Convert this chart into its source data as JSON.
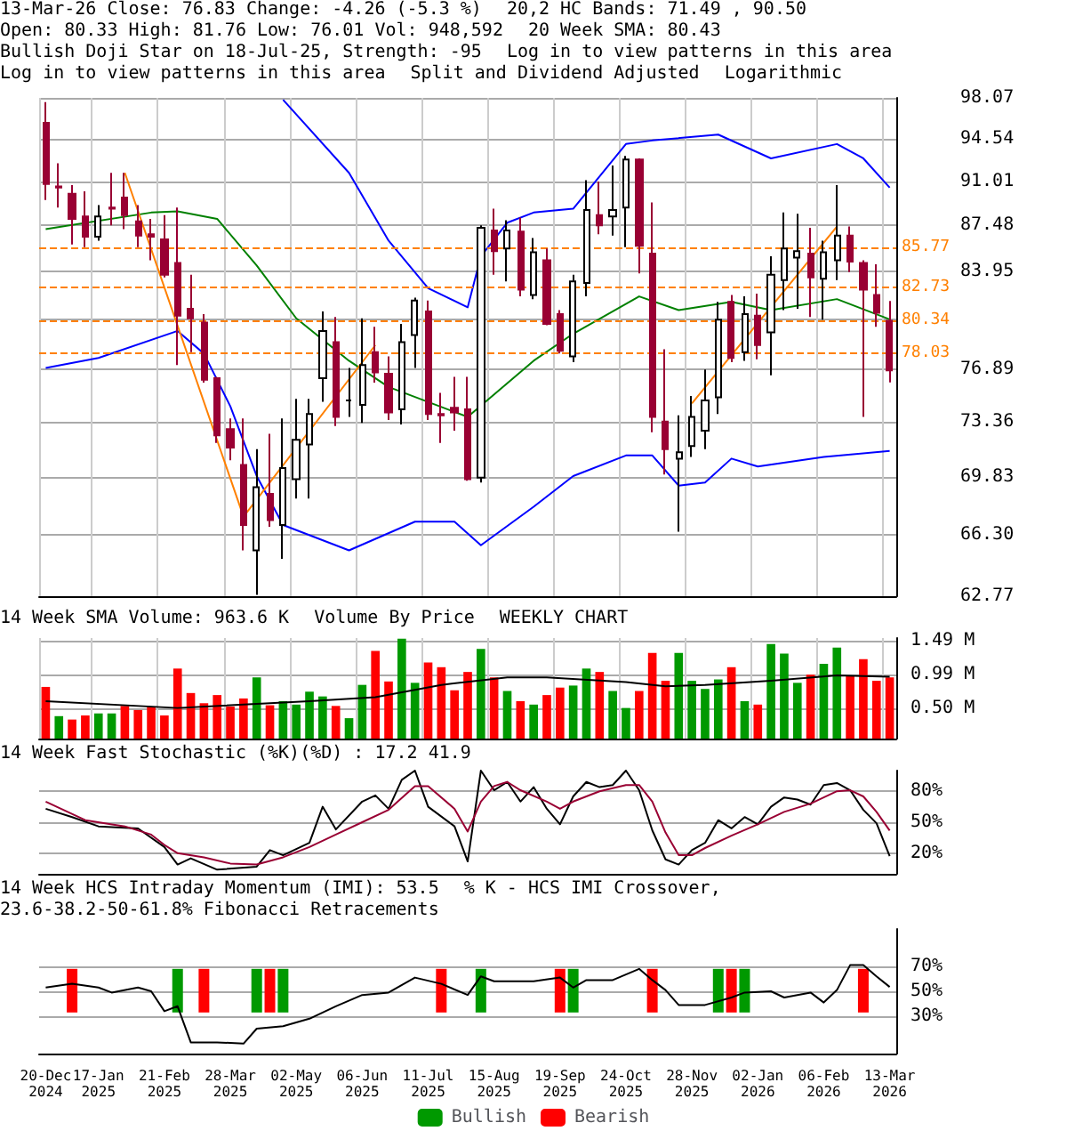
{
  "chart_data": [
    {
      "type": "candlestick",
      "annotations": [
        "13-Mar-26 Close: 76.83 Change: -4.26 (-5.3 %)",
        "20,2 HC Bands: 71.49 , 90.50",
        "Open: 80.33 High: 81.76 Low: 76.01 Vol: 948,592",
        "20 Week SMA: 80.43",
        "Bullish Doji Star on 18-Jul-25, Strength: -95",
        "Log in to view patterns in this area",
        "Log in to view patterns in this area",
        "Split and Dividend Adjusted",
        "Logarithmic"
      ],
      "categories": [
        null,
        null,
        null,
        null,
        null,
        null,
        null,
        null,
        null,
        null,
        null,
        null,
        null,
        null,
        null,
        null,
        null,
        null,
        null,
        null,
        null,
        null,
        null,
        null,
        null,
        null,
        null,
        null,
        null,
        null,
        null,
        null,
        null,
        null,
        null,
        null,
        null,
        null,
        null,
        null,
        null,
        null,
        null,
        null,
        null,
        null,
        null,
        null,
        null,
        null,
        null,
        null,
        null,
        null,
        null,
        null,
        null,
        null,
        null,
        null,
        null,
        null,
        null,
        null,
        null
      ],
      "ohlc": [
        [
          95.9,
          97.7,
          89.5,
          90.8
        ],
        [
          90.6,
          92.5,
          88.9,
          90.5
        ],
        [
          90.0,
          90.7,
          86.0,
          88.0
        ],
        [
          88.2,
          90.2,
          85.8,
          86.6
        ],
        [
          86.6,
          89.1,
          86.3,
          88.2
        ],
        [
          88.9,
          91.7,
          87.5,
          88.8
        ],
        [
          89.7,
          91.7,
          87.2,
          88.3
        ],
        [
          87.8,
          89.1,
          85.8,
          86.7
        ],
        [
          86.8,
          88.0,
          84.8,
          86.6
        ],
        [
          86.4,
          88.3,
          83.5,
          83.7
        ],
        [
          84.6,
          88.9,
          77.2,
          80.7
        ],
        [
          81.2,
          83.7,
          78.1,
          80.5
        ],
        [
          80.2,
          80.8,
          76.0,
          76.2
        ],
        [
          76.3,
          76.4,
          72.0,
          72.5
        ],
        [
          72.9,
          73.6,
          70.9,
          71.7
        ],
        [
          70.6,
          73.6,
          65.4,
          66.9
        ],
        [
          65.4,
          71.6,
          62.85,
          69.2
        ],
        [
          68.8,
          72.6,
          66.8,
          67.2
        ],
        [
          66.9,
          73.6,
          64.9,
          70.4
        ],
        [
          69.7,
          74.9,
          68.5,
          72.2
        ],
        [
          71.9,
          74.9,
          68.5,
          73.9
        ],
        [
          76.3,
          81.0,
          74.7,
          79.6
        ],
        [
          78.8,
          80.6,
          73.1,
          73.7
        ],
        [
          74.8,
          77.0,
          73.7,
          74.8
        ],
        [
          74.5,
          80.5,
          73.3,
          77.2
        ],
        [
          78.1,
          79.9,
          76.0,
          76.7
        ],
        [
          76.6,
          77.8,
          73.5,
          74.0
        ],
        [
          74.2,
          80.1,
          73.2,
          78.8
        ],
        [
          79.3,
          82.0,
          77.0,
          81.8
        ],
        [
          81.0,
          81.8,
          73.5,
          73.9
        ],
        [
          73.9,
          75.3,
          72.0,
          73.8
        ],
        [
          74.3,
          76.4,
          72.8,
          74.0
        ],
        [
          74.2,
          76.4,
          69.6,
          69.7
        ],
        [
          69.8,
          87.5,
          69.5,
          87.3
        ],
        [
          87.1,
          88.8,
          83.7,
          85.5
        ],
        [
          85.7,
          87.9,
          83.2,
          87.1
        ],
        [
          87.0,
          88.1,
          82.1,
          82.6
        ],
        [
          82.2,
          86.5,
          81.9,
          85.4
        ],
        [
          84.8,
          85.7,
          80.0,
          80.1
        ],
        [
          80.8,
          81.1,
          78.0,
          78.2
        ],
        [
          77.8,
          83.7,
          77.4,
          83.2
        ],
        [
          83.1,
          91.1,
          82.1,
          88.7
        ],
        [
          88.3,
          91.0,
          86.8,
          87.5
        ],
        [
          88.2,
          92.3,
          86.7,
          88.7
        ],
        [
          88.9,
          93.1,
          85.8,
          92.8
        ],
        [
          92.8,
          92.9,
          83.8,
          85.9
        ],
        [
          85.3,
          89.3,
          72.7,
          73.7
        ],
        [
          73.4,
          78.3,
          70.0,
          71.6
        ],
        [
          71.0,
          73.8,
          66.5,
          71.4
        ],
        [
          71.8,
          75.1,
          71.1,
          73.7
        ],
        [
          72.8,
          76.9,
          71.6,
          74.8
        ],
        [
          75.0,
          81.7,
          73.9,
          80.4
        ],
        [
          81.7,
          82.2,
          77.4,
          77.7
        ],
        [
          78.1,
          82.1,
          77.5,
          80.8
        ],
        [
          80.7,
          82.3,
          77.6,
          78.6
        ],
        [
          79.5,
          85.1,
          76.5,
          83.7
        ],
        [
          83.3,
          88.5,
          81.1,
          85.7
        ],
        [
          85.0,
          88.4,
          81.2,
          85.5
        ],
        [
          85.3,
          87.3,
          80.6,
          83.5
        ],
        [
          83.4,
          86.3,
          80.4,
          85.4
        ],
        [
          84.8,
          90.7,
          83.3,
          86.7
        ],
        [
          86.7,
          87.4,
          83.9,
          84.7
        ],
        [
          84.6,
          84.8,
          73.7,
          82.6
        ],
        [
          82.2,
          84.5,
          79.9,
          80.9
        ],
        [
          80.33,
          81.76,
          76.01,
          76.83
        ]
      ],
      "series": [
        {
          "type": "line",
          "color": "#0000ff",
          "values": [
            null,
            null,
            null,
            null,
            null,
            null,
            null,
            null,
            null,
            null,
            null,
            null,
            null,
            null,
            null,
            null,
            null,
            null,
            97.9,
            null,
            null,
            null,
            null,
            91.7,
            null,
            null,
            86.3,
            null,
            null,
            82.7,
            null,
            null,
            81.3,
            85.1,
            null,
            87.7,
            null,
            88.5,
            null,
            null,
            88.8,
            null,
            null,
            null,
            94.1,
            null,
            94.4,
            null,
            null,
            null,
            null,
            94.9,
            null,
            null,
            null,
            92.9,
            null,
            null,
            null,
            null,
            94.1,
            null,
            92.9,
            null,
            90.5
          ]
        },
        {
          "type": "line",
          "color": "#0000ff",
          "values": [
            77.0,
            null,
            null,
            null,
            77.7,
            null,
            null,
            null,
            null,
            null,
            79.6,
            null,
            78.0,
            null,
            74.4,
            null,
            69.9,
            null,
            66.9,
            null,
            null,
            null,
            null,
            65.4,
            null,
            null,
            null,
            null,
            67.1,
            null,
            null,
            67.1,
            null,
            65.7,
            null,
            null,
            null,
            68.0,
            null,
            null,
            69.9,
            null,
            null,
            null,
            71.2,
            null,
            71.2,
            null,
            69.3,
            null,
            69.5,
            null,
            71.0,
            null,
            70.5,
            null,
            null,
            null,
            null,
            71.1,
            null,
            null,
            null,
            null,
            71.49
          ]
        },
        {
          "type": "line",
          "color": "#008000",
          "values": [
            87.2,
            null,
            null,
            null,
            null,
            null,
            null,
            null,
            88.5,
            null,
            88.6,
            null,
            null,
            88.0,
            null,
            null,
            84.4,
            null,
            null,
            80.5,
            null,
            null,
            null,
            77.5,
            null,
            null,
            75.7,
            null,
            null,
            null,
            null,
            null,
            73.7,
            null,
            null,
            null,
            null,
            77.5,
            null,
            null,
            79.4,
            null,
            null,
            null,
            null,
            82.1,
            null,
            null,
            81.1,
            null,
            null,
            null,
            81.7,
            null,
            null,
            81.1,
            null,
            null,
            null,
            null,
            81.9,
            null,
            null,
            null,
            80.43
          ]
        },
        {
          "type": "line",
          "color": "#ff8000",
          "values": [
            null,
            null,
            null,
            null,
            null,
            null,
            91.7,
            null,
            null,
            null,
            null,
            null,
            null,
            null,
            null,
            67.4,
            null,
            null,
            null,
            null,
            null,
            null,
            null,
            null,
            null,
            78.6,
            null,
            null,
            null,
            null,
            null,
            null,
            null,
            null,
            null,
            null,
            null,
            null,
            null,
            null,
            null,
            null,
            null,
            null,
            null,
            null,
            null,
            null,
            null,
            null,
            null,
            null,
            null,
            null,
            null,
            null,
            null,
            null,
            null,
            null,
            null,
            null,
            null,
            null,
            null
          ]
        },
        {
          "type": "line",
          "color": "#ff8000",
          "values": [
            null,
            null,
            null,
            null,
            null,
            null,
            null,
            null,
            null,
            null,
            null,
            null,
            null,
            null,
            null,
            null,
            null,
            null,
            null,
            null,
            null,
            null,
            null,
            null,
            null,
            null,
            null,
            null,
            null,
            null,
            null,
            null,
            null,
            null,
            null,
            null,
            null,
            null,
            null,
            null,
            null,
            null,
            null,
            null,
            null,
            null,
            null,
            null,
            null,
            74.6,
            null,
            null,
            null,
            null,
            null,
            null,
            null,
            null,
            null,
            null,
            87.4,
            null,
            null,
            null,
            null
          ]
        }
      ],
      "ylim": [
        62.77,
        98.07
      ],
      "yticks": [
        62.77,
        {
          "value": 66.3,
          "label": "66.30"
        },
        69.83,
        73.36,
        76.89,
        {
          "value": 80.42,
          "label": null
        },
        83.95,
        87.48,
        91.01,
        94.54,
        98.07
      ],
      "log": true,
      "grid": true,
      "tick_labels": "y",
      "ref_lines": [
        {
          "axis": "y",
          "value": 85.77,
          "label": "85.77",
          "color": "#ff8000",
          "line_style": "dashed"
        },
        {
          "axis": "y",
          "value": 82.73,
          "label": "82.73",
          "color": "#ff8000",
          "line_style": "dashed"
        },
        {
          "axis": "y",
          "value": 80.34,
          "label": "80.34",
          "color": "#ff8000",
          "line_style": "dashed"
        },
        {
          "axis": "y",
          "value": 78.03,
          "label": "78.03",
          "color": "#ff8000",
          "line_style": "dashed"
        }
      ]
    },
    {
      "type": "bar",
      "title": "14 Week SMA Volume: 963.6 K",
      "annotations": [
        "Volume By Price",
        "WEEKLY CHART"
      ],
      "categories": [
        null,
        null,
        null,
        null,
        null,
        null,
        null,
        null,
        null,
        null,
        null,
        null,
        null,
        null,
        null,
        null,
        null,
        null,
        null,
        null,
        null,
        null,
        null,
        null,
        null,
        null,
        null,
        null,
        null,
        null,
        null,
        null,
        null,
        null,
        null,
        null,
        null,
        null,
        null,
        null,
        null,
        null,
        null,
        null,
        null,
        null,
        null,
        null,
        null,
        null,
        null,
        null,
        null,
        null,
        null,
        null,
        null,
        null,
        null,
        null,
        null,
        null,
        null,
        null,
        null
      ],
      "series": [
        {
          "values": [
            0.81,
            0.38,
            0.33,
            0.39,
            0.42,
            0.42,
            0.53,
            0.47,
            0.52,
            0.39,
            1.08,
            0.72,
            0.57,
            0.69,
            0.52,
            0.64,
            0.95,
            0.54,
            0.6,
            0.55,
            0.74,
            0.67,
            0.53,
            0.35,
            0.84,
            1.34,
            0.89,
            1.52,
            0.87,
            1.17,
            1.1,
            0.76,
            1.03,
            1.37,
            0.95,
            0.75,
            0.6,
            0.55,
            0.69,
            0.8,
            0.83,
            1.08,
            1.03,
            0.75,
            0.5,
            0.75,
            1.31,
            0.9,
            1.31,
            0.9,
            0.78,
            0.92,
            1.1,
            0.6,
            0.55,
            1.44,
            1.3,
            0.87,
            0.99,
            1.15,
            1.39,
            0.97,
            1.22,
            0.9,
            0.95
          ],
          "colors": [
            "#ff0000",
            "#009900",
            "#ff0000",
            "#ff0000",
            "#009900",
            "#009900",
            "#ff0000",
            "#ff0000",
            "#ff0000",
            "#ff0000",
            "#ff0000",
            "#ff0000",
            "#ff0000",
            "#ff0000",
            "#ff0000",
            "#ff0000",
            "#009900",
            "#ff0000",
            "#009900",
            "#009900",
            "#009900",
            "#009900",
            "#ff0000",
            "#009900",
            "#009900",
            "#ff0000",
            "#ff0000",
            "#009900",
            "#009900",
            "#ff0000",
            "#ff0000",
            "#ff0000",
            "#ff0000",
            "#009900",
            "#ff0000",
            "#009900",
            "#ff0000",
            "#009900",
            "#ff0000",
            "#ff0000",
            "#009900",
            "#009900",
            "#ff0000",
            "#009900",
            "#009900",
            "#ff0000",
            "#ff0000",
            "#ff0000",
            "#009900",
            "#009900",
            "#009900",
            "#009900",
            "#ff0000",
            "#009900",
            "#ff0000",
            "#009900",
            "#009900",
            "#009900",
            "#ff0000",
            "#009900",
            "#009900",
            "#ff0000",
            "#ff0000",
            "#ff0000",
            "#ff0000"
          ]
        },
        {
          "type": "line",
          "color": "#000000",
          "values": [
            0.6,
            null,
            null,
            null,
            null,
            null,
            null,
            null,
            null,
            null,
            0.5,
            null,
            null,
            null,
            null,
            null,
            null,
            null,
            null,
            null,
            0.6,
            null,
            null,
            null,
            null,
            0.66,
            null,
            null,
            null,
            null,
            0.84,
            null,
            null,
            null,
            null,
            0.95,
            null,
            null,
            0.95,
            null,
            null,
            null,
            null,
            null,
            0.88,
            null,
            null,
            0.82,
            null,
            null,
            0.84,
            null,
            null,
            null,
            null,
            0.9,
            null,
            null,
            null,
            null,
            0.98,
            null,
            null,
            null,
            0.96
          ]
        }
      ],
      "ylim": [
        0.05,
        1.53
      ],
      "yticks": [
        {
          "value": 0.5,
          "label": "0.50 M"
        },
        {
          "value": 0.99,
          "label": "0.99 M"
        },
        {
          "value": 1.49,
          "label": "1.49 M"
        }
      ],
      "grid": true,
      "tick_labels": "y"
    },
    {
      "type": "line",
      "title": "14 Week Fast Stochastic (%K)(%D) : 17.2 41.9",
      "categories": [
        null,
        null,
        null,
        null,
        null,
        null,
        null,
        null,
        null,
        null,
        null,
        null,
        null,
        null,
        null,
        null,
        null,
        null,
        null,
        null,
        null,
        null,
        null,
        null,
        null,
        null,
        null,
        null,
        null,
        null,
        null,
        null,
        null,
        null,
        null,
        null,
        null,
        null,
        null,
        null,
        null,
        null,
        null,
        null,
        null,
        null,
        null,
        null,
        null,
        null,
        null,
        null,
        null,
        null,
        null,
        null,
        null,
        null,
        null,
        null,
        null,
        null,
        null,
        null,
        null
      ],
      "series": [
        {
          "color": "#000000",
          "values": [
            63,
            null,
            55,
            null,
            46,
            null,
            null,
            44,
            null,
            26,
            9,
            15,
            null,
            4,
            null,
            null,
            7,
            23,
            18,
            null,
            30,
            65,
            43,
            null,
            70,
            76,
            63,
            91,
            100,
            65,
            null,
            46,
            12,
            100,
            81,
            89,
            70,
            84,
            63,
            48,
            75,
            89,
            84,
            86,
            100,
            81,
            42,
            14,
            9,
            23,
            30,
            52,
            44,
            55,
            48,
            65,
            74,
            72,
            67,
            86,
            88,
            81,
            62,
            49,
            17.2
          ]
        },
        {
          "color": "#990033",
          "values": [
            70,
            null,
            null,
            52,
            null,
            null,
            46,
            null,
            38,
            28,
            20,
            null,
            16,
            null,
            10,
            null,
            9,
            null,
            16,
            null,
            26,
            null,
            38,
            null,
            50,
            null,
            62,
            null,
            85,
            85,
            null,
            63,
            41,
            70,
            85,
            89,
            81,
            null,
            70,
            63,
            70,
            null,
            80,
            null,
            86,
            86,
            70,
            40,
            18,
            18,
            25,
            null,
            37,
            null,
            48,
            null,
            60,
            null,
            68,
            null,
            80,
            81,
            75,
            60,
            41.9
          ]
        }
      ],
      "ylim": [
        0,
        100
      ],
      "yticks": [
        {
          "value": 20,
          "label": "20%"
        },
        {
          "value": 50,
          "label": "50%"
        },
        {
          "value": 80,
          "label": "80%"
        }
      ],
      "grid": "y",
      "tick_labels": "y"
    },
    {
      "type": "line",
      "title": "14 Week HCS Intraday Momentum (IMI): 53.5",
      "annotations": [
        "% K - HCS IMI Crossover,",
        "23.6-38.2-50-61.8% Fibonacci Retracements"
      ],
      "categories": [
        "20-Dec\n2024",
        null,
        null,
        null,
        "17-Jan\n2025",
        null,
        null,
        null,
        null,
        "21-Feb\n2025",
        null,
        null,
        null,
        null,
        "28-Mar\n2025",
        null,
        null,
        null,
        null,
        "02-May\n2025",
        null,
        null,
        null,
        null,
        "06-Jun\n2025",
        null,
        null,
        null,
        null,
        "11-Jul\n2025",
        null,
        null,
        null,
        null,
        "15-Aug\n2025",
        null,
        null,
        null,
        null,
        "19-Sep\n2025",
        null,
        null,
        null,
        null,
        "24-Oct\n2025",
        null,
        null,
        null,
        null,
        "28-Nov\n2025",
        null,
        null,
        null,
        null,
        "02-Jan\n2026",
        null,
        null,
        null,
        null,
        "06-Feb\n2026",
        null,
        null,
        null,
        null,
        "13-Mar\n2026"
      ],
      "series": [
        {
          "type": "bar",
          "name": "Bullish",
          "color": "#009900",
          "values": [
            null,
            null,
            null,
            null,
            null,
            null,
            null,
            null,
            null,
            null,
            35,
            null,
            null,
            null,
            null,
            null,
            35,
            null,
            35,
            null,
            null,
            null,
            null,
            null,
            null,
            null,
            null,
            null,
            null,
            null,
            null,
            null,
            null,
            35,
            null,
            null,
            null,
            null,
            null,
            null,
            35,
            null,
            null,
            null,
            null,
            null,
            null,
            null,
            null,
            null,
            null,
            35,
            null,
            35,
            null,
            null,
            null,
            null,
            null,
            null,
            null,
            null,
            null,
            null,
            null
          ],
          "base": [
            null,
            null,
            null,
            null,
            null,
            null,
            null,
            null,
            null,
            null,
            33,
            null,
            null,
            null,
            null,
            null,
            33,
            null,
            33,
            null,
            null,
            null,
            null,
            null,
            null,
            null,
            null,
            null,
            null,
            null,
            null,
            null,
            null,
            33,
            null,
            null,
            null,
            null,
            null,
            null,
            33,
            null,
            null,
            null,
            null,
            null,
            null,
            null,
            null,
            null,
            null,
            33,
            null,
            33,
            null,
            null,
            null,
            null,
            null,
            null,
            null,
            null,
            null,
            null,
            null
          ]
        },
        {
          "type": "bar",
          "name": "Bearish",
          "color": "#ff0000",
          "values": [
            null,
            null,
            35,
            null,
            null,
            null,
            null,
            null,
            null,
            null,
            null,
            null,
            35,
            null,
            null,
            null,
            null,
            35,
            null,
            null,
            null,
            null,
            null,
            null,
            null,
            null,
            null,
            null,
            null,
            null,
            35,
            null,
            null,
            null,
            null,
            null,
            null,
            null,
            null,
            35,
            null,
            null,
            null,
            null,
            null,
            null,
            35,
            null,
            null,
            null,
            null,
            null,
            35,
            null,
            null,
            null,
            null,
            null,
            null,
            null,
            null,
            null,
            35,
            null,
            null
          ],
          "base": [
            null,
            null,
            33,
            null,
            null,
            null,
            null,
            null,
            null,
            null,
            null,
            null,
            33,
            null,
            null,
            null,
            null,
            33,
            null,
            null,
            null,
            null,
            null,
            null,
            null,
            null,
            null,
            null,
            null,
            null,
            33,
            null,
            null,
            null,
            null,
            null,
            null,
            null,
            null,
            33,
            null,
            null,
            null,
            null,
            null,
            null,
            33,
            null,
            null,
            null,
            null,
            null,
            33,
            null,
            null,
            null,
            null,
            null,
            null,
            null,
            null,
            null,
            33,
            null,
            null
          ]
        },
        {
          "type": "line",
          "color": "#000000",
          "values": [
            53,
            null,
            56,
            null,
            53,
            49,
            null,
            53,
            50,
            34,
            38,
            9,
            null,
            9,
            null,
            8,
            20,
            null,
            22,
            null,
            28,
            null,
            38,
            null,
            47,
            null,
            49,
            null,
            61,
            null,
            56,
            null,
            47,
            62,
            58,
            null,
            null,
            58,
            null,
            61,
            53,
            59,
            null,
            59,
            null,
            68,
            59,
            51,
            39,
            null,
            39,
            null,
            45,
            49,
            null,
            50,
            45,
            null,
            49,
            41,
            51,
            71,
            71,
            62,
            53.5
          ]
        }
      ],
      "ylim": [
        0,
        100
      ],
      "yticks": [
        {
          "value": 30,
          "label": "30%"
        },
        {
          "value": 50,
          "label": "50%"
        },
        {
          "value": 70,
          "label": "70%"
        }
      ],
      "grid": "y",
      "legend": "bottom"
    }
  ]
}
